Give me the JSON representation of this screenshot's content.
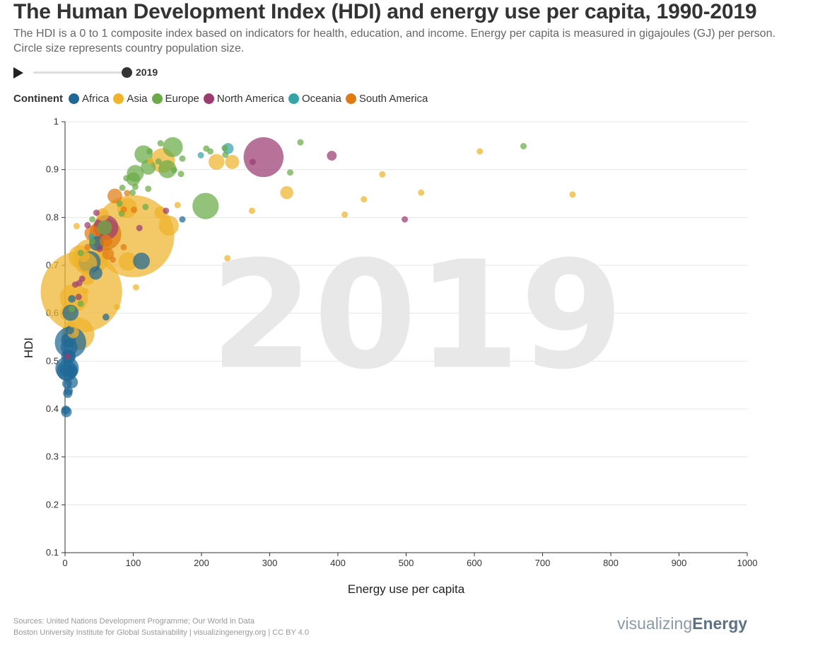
{
  "header": {
    "title": "The Human Development Index (HDI) and energy use per capita, 1990-2019",
    "subtitle": "The HDI is a 0 to 1 composite index based on indicators for health, education, and income. Energy per capita is measured in gigajoules (GJ) per person. Circle size represents country population size."
  },
  "player": {
    "year": "2019",
    "progress": 1.0
  },
  "legend": {
    "title": "Continent",
    "items": [
      {
        "label": "Africa",
        "color": "#1f6895"
      },
      {
        "label": "Asia",
        "color": "#efb32c"
      },
      {
        "label": "Europe",
        "color": "#6aab47"
      },
      {
        "label": "North America",
        "color": "#9a3c72"
      },
      {
        "label": "Oceania",
        "color": "#36a3a8"
      },
      {
        "label": "South America",
        "color": "#e07a12"
      }
    ]
  },
  "footer": {
    "sources_line1": "Sources: United Nations Development Programme; Our World in Data",
    "sources_line2": "Boston University Institute for Global Sustainability | visualizingenergy.org | CC BY 4.0",
    "brand_light": "visualizing",
    "brand_bold": "Energy"
  },
  "chart_data": {
    "type": "scatter",
    "xlabel": "Energy use per capita",
    "ylabel": "HDI",
    "xlim": [
      0,
      1000
    ],
    "ylim": [
      0.1,
      1
    ],
    "xticks": [
      0,
      100,
      200,
      300,
      400,
      500,
      600,
      700,
      800,
      900,
      1000
    ],
    "yticks": [
      0.1,
      0.2,
      0.3,
      0.4,
      0.5,
      0.6,
      0.7,
      0.8,
      0.9,
      1
    ],
    "grid": "horizontal",
    "watermark": "2019",
    "size_encoding": "population",
    "points": [
      {
        "x": 24,
        "y": 0.645,
        "c": "Asia",
        "pop": 1380
      },
      {
        "x": 100,
        "y": 0.761,
        "c": "Asia",
        "pop": 1400
      },
      {
        "x": 291,
        "y": 0.926,
        "c": "North America",
        "pop": 330
      },
      {
        "x": 38,
        "y": 0.718,
        "c": "Asia",
        "pop": 270
      },
      {
        "x": 19,
        "y": 0.557,
        "c": "Asia",
        "pop": 220
      },
      {
        "x": 8,
        "y": 0.539,
        "c": "Africa",
        "pop": 206
      },
      {
        "x": 59,
        "y": 0.765,
        "c": "South America",
        "pop": 212
      },
      {
        "x": 13,
        "y": 0.632,
        "c": "Asia",
        "pop": 165
      },
      {
        "x": 206,
        "y": 0.824,
        "c": "Europe",
        "pop": 144
      },
      {
        "x": 60,
        "y": 0.779,
        "c": "North America",
        "pop": 128
      },
      {
        "x": 143,
        "y": 0.919,
        "c": "Asia",
        "pop": 126
      },
      {
        "x": 3,
        "y": 0.485,
        "c": "Africa",
        "pop": 115
      },
      {
        "x": 22,
        "y": 0.718,
        "c": "Asia",
        "pop": 110
      },
      {
        "x": 36,
        "y": 0.707,
        "c": "Africa",
        "pop": 102
      },
      {
        "x": 31,
        "y": 0.704,
        "c": "Asia",
        "pop": 97
      },
      {
        "x": 3,
        "y": 0.48,
        "c": "Africa",
        "pop": 89
      },
      {
        "x": 152,
        "y": 0.783,
        "c": "Asia",
        "pop": 84
      },
      {
        "x": 158,
        "y": 0.947,
        "c": "Europe",
        "pop": 83
      },
      {
        "x": 91,
        "y": 0.82,
        "c": "Asia",
        "pop": 84
      },
      {
        "x": 92,
        "y": 0.708,
        "c": "Asia",
        "pop": 70
      },
      {
        "x": 150,
        "y": 0.901,
        "c": "Europe",
        "pop": 67
      },
      {
        "x": 115,
        "y": 0.932,
        "c": "Europe",
        "pop": 67
      },
      {
        "x": 103,
        "y": 0.892,
        "c": "Europe",
        "pop": 60
      },
      {
        "x": 112,
        "y": 0.709,
        "c": "Africa",
        "pop": 59
      },
      {
        "x": 6,
        "y": 0.529,
        "c": "Africa",
        "pop": 60
      },
      {
        "x": 4,
        "y": 0.601,
        "c": "Asia",
        "pop": 54
      },
      {
        "x": 222,
        "y": 0.916,
        "c": "Asia",
        "pop": 52
      },
      {
        "x": 8,
        "y": 0.601,
        "c": "Africa",
        "pop": 54
      },
      {
        "x": 40,
        "y": 0.767,
        "c": "South America",
        "pop": 51
      },
      {
        "x": 5,
        "y": 0.544,
        "c": "Africa",
        "pop": 46
      },
      {
        "x": 3,
        "y": 0.482,
        "c": "Africa",
        "pop": 45
      },
      {
        "x": 122,
        "y": 0.905,
        "c": "Europe",
        "pop": 47
      },
      {
        "x": 73,
        "y": 0.845,
        "c": "South America",
        "pop": 45
      },
      {
        "x": 58,
        "y": 0.779,
        "c": "Europe",
        "pop": 44
      },
      {
        "x": 33,
        "y": 0.674,
        "c": "Asia",
        "pop": 43
      },
      {
        "x": 46,
        "y": 0.746,
        "c": "Africa",
        "pop": 44
      },
      {
        "x": 5,
        "y": 0.51,
        "c": "Africa",
        "pop": 44
      },
      {
        "x": 245,
        "y": 0.916,
        "c": "Asia",
        "pop": 42
      },
      {
        "x": 60,
        "y": 0.751,
        "c": "South America",
        "pop": 33
      },
      {
        "x": 6,
        "y": 0.51,
        "c": "Africa",
        "pop": 31
      },
      {
        "x": 45,
        "y": 0.684,
        "c": "Africa",
        "pop": 37
      },
      {
        "x": 55,
        "y": 0.806,
        "c": "Asia",
        "pop": 34
      },
      {
        "x": 100,
        "y": 0.88,
        "c": "Europe",
        "pop": 38
      },
      {
        "x": 239,
        "y": 0.944,
        "c": "Oceania",
        "pop": 25
      },
      {
        "x": 10,
        "y": 0.456,
        "c": "Africa",
        "pop": 31
      },
      {
        "x": 27,
        "y": 0.72,
        "c": "Asia",
        "pop": 33
      },
      {
        "x": 63,
        "y": 0.724,
        "c": "South America",
        "pop": 29
      },
      {
        "x": 140,
        "y": 0.81,
        "c": "Asia",
        "pop": 32
      },
      {
        "x": 12,
        "y": 0.56,
        "c": "Asia",
        "pop": 29
      },
      {
        "x": 325,
        "y": 0.852,
        "c": "Asia",
        "pop": 35
      },
      {
        "x": 10,
        "y": 0.479,
        "c": "Africa",
        "pop": 28
      },
      {
        "x": 2,
        "y": 0.394,
        "c": "Africa",
        "pop": 24
      },
      {
        "x": 4,
        "y": 0.433,
        "c": "Africa",
        "pop": 18
      },
      {
        "x": 3,
        "y": 0.453,
        "c": "Africa",
        "pop": 20
      },
      {
        "x": 5,
        "y": 0.438,
        "c": "Africa",
        "pop": 16
      },
      {
        "x": 1,
        "y": 0.398,
        "c": "Africa",
        "pop": 16
      },
      {
        "x": 7,
        "y": 0.565,
        "c": "Africa",
        "pop": 15
      },
      {
        "x": 10,
        "y": 0.63,
        "c": "Africa",
        "pop": 12
      },
      {
        "x": 60,
        "y": 0.592,
        "c": "Africa",
        "pop": 10
      },
      {
        "x": 172,
        "y": 0.796,
        "c": "Africa",
        "pop": 8
      },
      {
        "x": 10,
        "y": 0.609,
        "c": "Europe",
        "pop": 6
      },
      {
        "x": 23,
        "y": 0.62,
        "c": "Europe",
        "pop": 6
      },
      {
        "x": 23,
        "y": 0.726,
        "c": "Europe",
        "pop": 6
      },
      {
        "x": 40,
        "y": 0.796,
        "c": "Europe",
        "pop": 6
      },
      {
        "x": 80,
        "y": 0.829,
        "c": "Europe",
        "pop": 6
      },
      {
        "x": 84,
        "y": 0.862,
        "c": "Europe",
        "pop": 6
      },
      {
        "x": 90,
        "y": 0.882,
        "c": "Europe",
        "pop": 6
      },
      {
        "x": 99,
        "y": 0.852,
        "c": "Europe",
        "pop": 6
      },
      {
        "x": 103,
        "y": 0.864,
        "c": "Europe",
        "pop": 6
      },
      {
        "x": 118,
        "y": 0.822,
        "c": "Europe",
        "pop": 6
      },
      {
        "x": 122,
        "y": 0.86,
        "c": "Europe",
        "pop": 6
      },
      {
        "x": 137,
        "y": 0.917,
        "c": "Europe",
        "pop": 6
      },
      {
        "x": 140,
        "y": 0.955,
        "c": "Europe",
        "pop": 6
      },
      {
        "x": 160,
        "y": 0.899,
        "c": "Europe",
        "pop": 6
      },
      {
        "x": 170,
        "y": 0.891,
        "c": "Europe",
        "pop": 6
      },
      {
        "x": 172,
        "y": 0.923,
        "c": "Europe",
        "pop": 6
      },
      {
        "x": 207,
        "y": 0.944,
        "c": "Europe",
        "pop": 6
      },
      {
        "x": 213,
        "y": 0.938,
        "c": "Europe",
        "pop": 6
      },
      {
        "x": 234,
        "y": 0.945,
        "c": "Europe",
        "pop": 6
      },
      {
        "x": 235,
        "y": 0.931,
        "c": "Europe",
        "pop": 6
      },
      {
        "x": 330,
        "y": 0.894,
        "c": "Europe",
        "pop": 6
      },
      {
        "x": 345,
        "y": 0.957,
        "c": "Europe",
        "pop": 6
      },
      {
        "x": 672,
        "y": 0.949,
        "c": "Europe",
        "pop": 6
      },
      {
        "x": 124,
        "y": 0.938,
        "c": "Europe",
        "pop": 6
      },
      {
        "x": 83,
        "y": 0.808,
        "c": "Europe",
        "pop": 6
      },
      {
        "x": 40,
        "y": 0.75,
        "c": "Europe",
        "pop": 6
      },
      {
        "x": 30,
        "y": 0.646,
        "c": "Asia",
        "pop": 6
      },
      {
        "x": 17,
        "y": 0.782,
        "c": "Asia",
        "pop": 6
      },
      {
        "x": 76,
        "y": 0.613,
        "c": "Asia",
        "pop": 6
      },
      {
        "x": 104,
        "y": 0.654,
        "c": "Asia",
        "pop": 6
      },
      {
        "x": 125,
        "y": 0.918,
        "c": "Asia",
        "pop": 6
      },
      {
        "x": 165,
        "y": 0.826,
        "c": "Asia",
        "pop": 6
      },
      {
        "x": 238,
        "y": 0.715,
        "c": "Asia",
        "pop": 6
      },
      {
        "x": 274,
        "y": 0.814,
        "c": "Asia",
        "pop": 6
      },
      {
        "x": 410,
        "y": 0.806,
        "c": "Asia",
        "pop": 6
      },
      {
        "x": 438,
        "y": 0.838,
        "c": "Asia",
        "pop": 6
      },
      {
        "x": 465,
        "y": 0.89,
        "c": "Asia",
        "pop": 6
      },
      {
        "x": 522,
        "y": 0.852,
        "c": "Asia",
        "pop": 6
      },
      {
        "x": 608,
        "y": 0.938,
        "c": "Asia",
        "pop": 6
      },
      {
        "x": 744,
        "y": 0.848,
        "c": "Asia",
        "pop": 6
      },
      {
        "x": 10,
        "y": 0.577,
        "c": "Asia",
        "pop": 6
      },
      {
        "x": 15,
        "y": 0.66,
        "c": "North America",
        "pop": 6
      },
      {
        "x": 21,
        "y": 0.663,
        "c": "North America",
        "pop": 6
      },
      {
        "x": 25,
        "y": 0.672,
        "c": "North America",
        "pop": 6
      },
      {
        "x": 33,
        "y": 0.784,
        "c": "North America",
        "pop": 6
      },
      {
        "x": 46,
        "y": 0.81,
        "c": "North America",
        "pop": 6
      },
      {
        "x": 51,
        "y": 0.734,
        "c": "North America",
        "pop": 6
      },
      {
        "x": 109,
        "y": 0.778,
        "c": "North America",
        "pop": 6
      },
      {
        "x": 148,
        "y": 0.814,
        "c": "North America",
        "pop": 6
      },
      {
        "x": 275,
        "y": 0.916,
        "c": "North America",
        "pop": 6
      },
      {
        "x": 391,
        "y": 0.929,
        "c": "North America",
        "pop": 20
      },
      {
        "x": 498,
        "y": 0.796,
        "c": "North America",
        "pop": 6
      },
      {
        "x": 20,
        "y": 0.634,
        "c": "North America",
        "pop": 6
      },
      {
        "x": 4,
        "y": 0.51,
        "c": "North America",
        "pop": 6
      },
      {
        "x": 33,
        "y": 0.738,
        "c": "South America",
        "pop": 6
      },
      {
        "x": 70,
        "y": 0.712,
        "c": "South America",
        "pop": 6
      },
      {
        "x": 86,
        "y": 0.738,
        "c": "South America",
        "pop": 6
      },
      {
        "x": 91,
        "y": 0.851,
        "c": "South America",
        "pop": 6
      },
      {
        "x": 86,
        "y": 0.817,
        "c": "South America",
        "pop": 6
      },
      {
        "x": 101,
        "y": 0.816,
        "c": "South America",
        "pop": 6
      },
      {
        "x": 199,
        "y": 0.93,
        "c": "Oceania",
        "pop": 6
      },
      {
        "x": 39,
        "y": 0.76,
        "c": "Oceania",
        "pop": 6
      }
    ]
  }
}
